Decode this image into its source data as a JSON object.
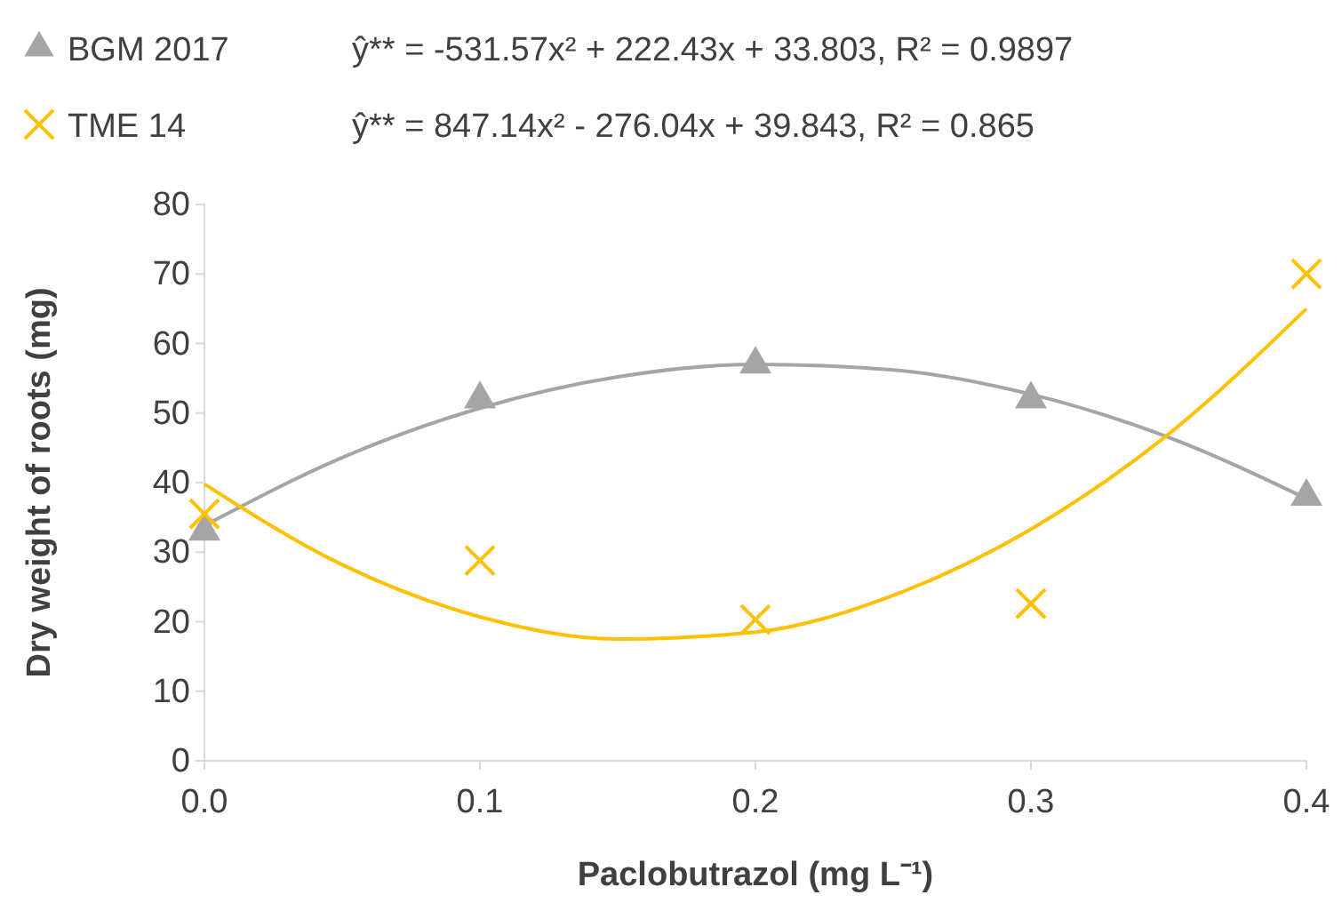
{
  "chart_data": {
    "type": "scatter",
    "xlabel": "Paclobutrazol (mg L⁻¹)",
    "ylabel": "Dry weight of roots (mg)",
    "xlim": [
      0,
      0.4
    ],
    "xticks": [
      {
        "value": 0,
        "label": "0.0"
      },
      0.1,
      0.2,
      0.3,
      0.4
    ],
    "ylim": [
      0,
      80
    ],
    "yticks": [
      0,
      10,
      20,
      30,
      40,
      50,
      60,
      70,
      80
    ],
    "grid": false,
    "legend": "top",
    "annotations": [
      "ŷ** = -531.57x² + 222.43x + 33.803, R² = 0.9897",
      "ŷ** = 847.14x² - 276.04x + 39.843, R² = 0.865"
    ],
    "series": [
      {
        "name": "BGM 2017",
        "marker": "triangle",
        "color": "#a5a5a5",
        "x": [
          0,
          0.1,
          0.2,
          0.3,
          0.4
        ],
        "values": [
          33,
          52,
          57,
          52,
          38
        ]
      },
      {
        "name": "TME 14",
        "marker": "cross",
        "color": "#ffc000",
        "x": [
          0,
          0.1,
          0.2,
          0.3,
          0.4
        ],
        "values": [
          35.5,
          28.8,
          20.3,
          22.6,
          70
        ]
      },
      {
        "type": "line",
        "marker": "none",
        "line_style": "solid",
        "color": "#a5a5a5",
        "x": [
          0,
          0.05,
          0.1,
          0.15,
          0.2,
          0.25,
          0.3,
          0.35,
          0.4
        ],
        "values": [
          33.8,
          43.6,
          50.7,
          55.2,
          57.0,
          56.2,
          52.7,
          46.5,
          37.7
        ]
      },
      {
        "type": "line",
        "marker": "none",
        "line_style": "solid",
        "color": "#ffc000",
        "x": [
          0,
          0.05,
          0.1,
          0.15,
          0.2,
          0.25,
          0.3,
          0.35,
          0.4
        ],
        "values": [
          39.8,
          28.2,
          20.7,
          17.5,
          18.5,
          23.8,
          33.3,
          47.0,
          65.0
        ]
      }
    ]
  }
}
